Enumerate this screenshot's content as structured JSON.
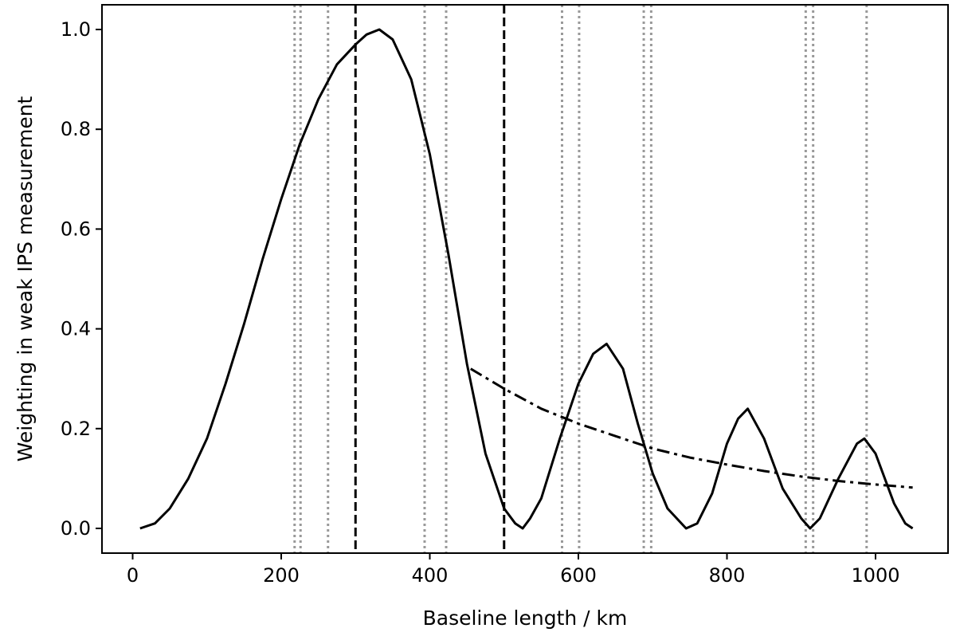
{
  "chart_data": {
    "type": "line",
    "title": "",
    "xlabel": "Baseline length / km",
    "ylabel": "Weighting in weak IPS measurement",
    "xlim": [
      -50,
      1080
    ],
    "ylim": [
      -0.05,
      1.05
    ],
    "xticks": [
      0,
      200,
      400,
      600,
      800,
      1000
    ],
    "xtick_labels": [
      "0",
      "200",
      "400",
      "600",
      "800",
      "1000"
    ],
    "yticks": [
      0.0,
      0.2,
      0.4,
      0.6,
      0.8,
      1.0
    ],
    "ytick_labels": [
      "0.0",
      "0.2",
      "0.4",
      "0.6",
      "0.8",
      "1.0"
    ],
    "grid": false,
    "series": [
      {
        "style": "solid",
        "color": "#000000",
        "x": [
          10,
          30,
          50,
          75,
          100,
          125,
          150,
          175,
          200,
          225,
          250,
          275,
          300,
          315,
          332,
          350,
          375,
          400,
          425,
          450,
          475,
          500,
          515,
          525,
          535,
          550,
          575,
          600,
          620,
          638,
          660,
          680,
          700,
          720,
          745,
          760,
          780,
          800,
          815,
          828,
          850,
          875,
          900,
          912,
          925,
          950,
          975,
          985,
          1000,
          1025,
          1040,
          1050
        ],
        "y": [
          0.0,
          0.01,
          0.04,
          0.1,
          0.18,
          0.29,
          0.41,
          0.54,
          0.66,
          0.77,
          0.86,
          0.93,
          0.97,
          0.99,
          1.0,
          0.98,
          0.9,
          0.75,
          0.55,
          0.33,
          0.15,
          0.04,
          0.01,
          0.0,
          0.02,
          0.06,
          0.18,
          0.29,
          0.35,
          0.37,
          0.32,
          0.21,
          0.11,
          0.04,
          0.0,
          0.01,
          0.07,
          0.17,
          0.22,
          0.24,
          0.18,
          0.08,
          0.02,
          0.0,
          0.02,
          0.1,
          0.17,
          0.18,
          0.15,
          0.05,
          0.01,
          0.0
        ]
      },
      {
        "style": "dashdot",
        "color": "#000000",
        "x": [
          455,
          500,
          550,
          600,
          650,
          700,
          750,
          800,
          850,
          900,
          950,
          1000,
          1050
        ],
        "y": [
          0.32,
          0.28,
          0.24,
          0.21,
          0.185,
          0.16,
          0.142,
          0.128,
          0.115,
          0.104,
          0.095,
          0.088,
          0.082
        ]
      }
    ],
    "vlines": [
      {
        "x": 300,
        "style": "dashed",
        "color": "#000000"
      },
      {
        "x": 500,
        "style": "dashed",
        "color": "#000000"
      },
      {
        "x": 218,
        "style": "dotted",
        "color": "#999999"
      },
      {
        "x": 226,
        "style": "dotted",
        "color": "#999999"
      },
      {
        "x": 263,
        "style": "dotted",
        "color": "#999999"
      },
      {
        "x": 393,
        "style": "dotted",
        "color": "#999999"
      },
      {
        "x": 422,
        "style": "dotted",
        "color": "#999999"
      },
      {
        "x": 578,
        "style": "dotted",
        "color": "#999999"
      },
      {
        "x": 601,
        "style": "dotted",
        "color": "#999999"
      },
      {
        "x": 688,
        "style": "dotted",
        "color": "#999999"
      },
      {
        "x": 698,
        "style": "dotted",
        "color": "#999999"
      },
      {
        "x": 906,
        "style": "dotted",
        "color": "#999999"
      },
      {
        "x": 916,
        "style": "dotted",
        "color": "#999999"
      },
      {
        "x": 988,
        "style": "dotted",
        "color": "#999999"
      }
    ]
  }
}
